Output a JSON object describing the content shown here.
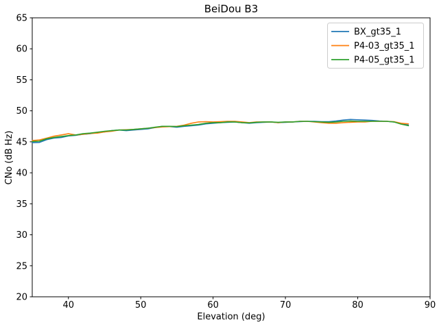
{
  "figure": {
    "background": "#ffffff",
    "spine_color": "#000000"
  },
  "chart_data": {
    "type": "line",
    "title": "BeiDou B3",
    "xlabel": "Elevation (deg)",
    "ylabel": "CNo (dB Hz)",
    "xlim": [
      35,
      90
    ],
    "ylim": [
      20,
      65
    ],
    "xticks": [
      40,
      50,
      60,
      70,
      80,
      90
    ],
    "yticks": [
      20,
      25,
      30,
      35,
      40,
      45,
      50,
      55,
      60,
      65
    ],
    "grid": false,
    "legend_position": "upper right",
    "x": [
      35,
      36,
      37,
      38,
      39,
      40,
      41,
      42,
      43,
      44,
      45,
      46,
      47,
      48,
      49,
      50,
      51,
      52,
      53,
      54,
      55,
      56,
      57,
      58,
      59,
      60,
      61,
      62,
      63,
      64,
      65,
      66,
      67,
      68,
      69,
      70,
      71,
      72,
      73,
      74,
      75,
      76,
      77,
      78,
      79,
      80,
      81,
      82,
      83,
      84,
      85,
      86,
      87
    ],
    "series": [
      {
        "name": "BX_gt35_1",
        "color": "#1f77b4",
        "values": [
          44.85,
          44.9,
          45.35,
          45.6,
          45.7,
          45.95,
          46.05,
          46.2,
          46.3,
          46.5,
          46.6,
          46.8,
          46.9,
          46.8,
          46.9,
          47.0,
          47.1,
          47.3,
          47.5,
          47.45,
          47.35,
          47.5,
          47.6,
          47.7,
          47.9,
          48.0,
          48.1,
          48.15,
          48.2,
          48.1,
          48.0,
          48.1,
          48.15,
          48.2,
          48.1,
          48.15,
          48.2,
          48.25,
          48.3,
          48.3,
          48.25,
          48.25,
          48.35,
          48.5,
          48.6,
          48.55,
          48.5,
          48.45,
          48.35,
          48.3,
          48.2,
          47.95,
          47.7
        ]
      },
      {
        "name": "P4-03_gt35_1",
        "color": "#ff7f0e",
        "values": [
          45.2,
          45.3,
          45.6,
          45.9,
          46.1,
          46.3,
          46.1,
          46.2,
          46.35,
          46.4,
          46.6,
          46.7,
          46.9,
          46.95,
          47.0,
          47.1,
          47.2,
          47.3,
          47.4,
          47.45,
          47.5,
          47.7,
          48.0,
          48.2,
          48.25,
          48.2,
          48.25,
          48.3,
          48.3,
          48.2,
          48.1,
          48.2,
          48.2,
          48.2,
          48.1,
          48.2,
          48.2,
          48.3,
          48.3,
          48.2,
          48.1,
          48.0,
          48.0,
          48.1,
          48.15,
          48.2,
          48.2,
          48.3,
          48.3,
          48.3,
          48.25,
          48.0,
          47.9
        ]
      },
      {
        "name": "P4-05_gt35_1",
        "color": "#2ca02c",
        "values": [
          45.05,
          45.1,
          45.5,
          45.7,
          45.85,
          46.0,
          46.1,
          46.3,
          46.4,
          46.55,
          46.7,
          46.8,
          46.9,
          46.9,
          47.0,
          47.1,
          47.2,
          47.35,
          47.5,
          47.5,
          47.45,
          47.6,
          47.7,
          47.8,
          48.0,
          48.1,
          48.1,
          48.2,
          48.2,
          48.1,
          48.05,
          48.15,
          48.2,
          48.2,
          48.15,
          48.2,
          48.2,
          48.3,
          48.3,
          48.25,
          48.2,
          48.15,
          48.2,
          48.3,
          48.35,
          48.3,
          48.3,
          48.3,
          48.3,
          48.3,
          48.2,
          47.85,
          47.6
        ]
      }
    ]
  }
}
